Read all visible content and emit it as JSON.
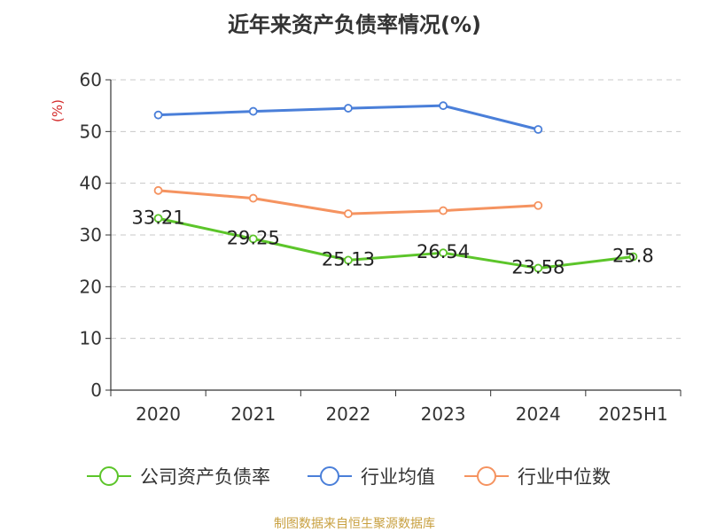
{
  "chart_data": {
    "type": "line",
    "title": "近年来资产负债率情况(%)",
    "ylabel": "(%)",
    "xlabel": "",
    "categories": [
      "2020",
      "2021",
      "2022",
      "2023",
      "2024",
      "2025H1"
    ],
    "ylim": [
      0,
      60
    ],
    "yticks": [
      0,
      10,
      20,
      30,
      40,
      50,
      60
    ],
    "grid": "horizontal-dashed",
    "legend_position": "bottom",
    "series": [
      {
        "name": "公司资产负债率",
        "color": "#5cc52a",
        "values": [
          33.21,
          29.25,
          25.13,
          26.54,
          23.58,
          25.8
        ],
        "labels": [
          "33.21",
          "29.25",
          "25.13",
          "26.54",
          "23.58",
          "25.8"
        ]
      },
      {
        "name": "行业均值",
        "color": "#4a7fd9",
        "values": [
          53.2,
          53.9,
          54.5,
          55.0,
          50.4,
          null
        ]
      },
      {
        "name": "行业中位数",
        "color": "#f59360",
        "values": [
          38.6,
          37.1,
          34.1,
          34.7,
          35.7,
          null
        ]
      }
    ]
  },
  "source": "制图数据来自恒生聚源数据库"
}
